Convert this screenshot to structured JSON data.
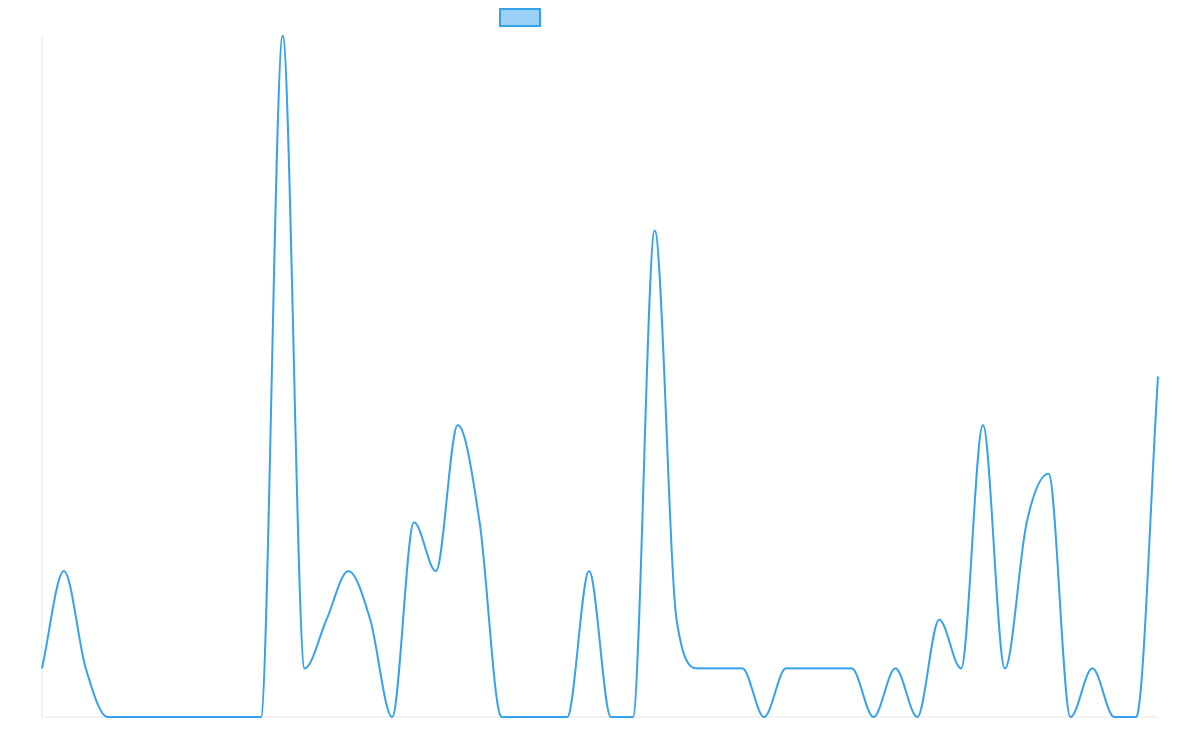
{
  "chart_data": {
    "type": "line",
    "title": "",
    "xlabel": "",
    "ylabel": "",
    "grid": false,
    "legend": "top-center",
    "ylim": [
      0,
      14
    ],
    "series": [
      {
        "name": "",
        "color": "#36a2eb",
        "fill_color": "#9ad0f5",
        "values": [
          1,
          3,
          1,
          0,
          0,
          0,
          0,
          0,
          0,
          0,
          0,
          14,
          1,
          2,
          3,
          2,
          0,
          4,
          3,
          6,
          4,
          0,
          0,
          0,
          0,
          3,
          0,
          0,
          10,
          2,
          1,
          1,
          1,
          0,
          1,
          1,
          1,
          1,
          0,
          1,
          0,
          2,
          1,
          6,
          1,
          4,
          5,
          0,
          1,
          0,
          0,
          7
        ]
      }
    ]
  }
}
